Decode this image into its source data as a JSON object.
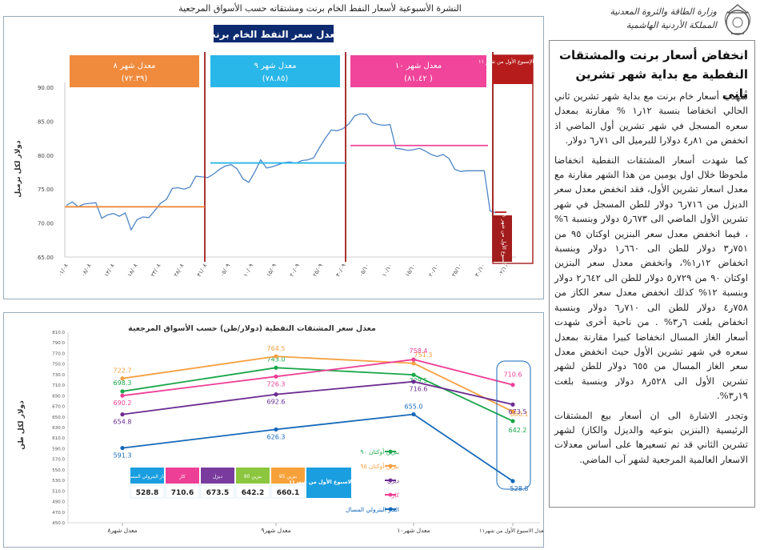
{
  "header": {
    "title": "النشرة الأسبوعية لأسعار النفط الخام برنت ومشتقاته حسب الأسواق المرجعية",
    "logo_lines": [
      "وزارة الطاقة والثروة المعدنية",
      "المملكة الأردنية الهاشمية"
    ]
  },
  "article": {
    "headline": "انخفاض أسعار برنت والمشتقات النفطية مع بداية شهر تشرين ثاني",
    "paragraphs": [
      "شهدت أسعار خام برنت مع بداية شهر تشرين ثاني الحالي انخفاضا بنسبة ١٢ر١ % مقارنة بمعدل سعره المسجل في شهر تشرين أول الماضي اذ انخفض من ٨١ر٤ دولارا للبرميل الى ٧١ر٦ دولار.",
      "كما شهدت أسعار المشتقات النفطية انخفاضا ملحوظا خلال اول يومين من هذا الشهر مقارنة مع معدل اسعار تشرين الأول، فقد انخفض معدل سعر الديزل من ٧١٦ر٦ دولار للطن المسجل في شهر تشرين الأول الماضي الى ٦٧٣ر٥ دولار وبنسبة ٦% ، فيما انخفض معدل سعر البنزين اوكتان ٩٥ من ٧٥١ر٣ دولار للطن الى ٦٦٠ر١ دولار وبنسبة انخفاض ١٢ر١%، وانخفض معدل سعر البنزين اوكتان ٩٠ من ٧٢٩ر٥ دولار للطن الى ٦٤٢ر٢ دولار وبنسبة ١٢% كذلك انخفض معدل سعر الكاز من ٧٥٨ر٤ دولار للطن الى ٧١٠ر٦ دولار وبنسبة انخفاض بلغت ٦ر٣% . من ناحية أخرى شهدت أسعار الغاز المسال انخفاضا كبيرا مقارنة بمعدل سعره في شهر تشرين الأول حيث انخفض معدل سعر الغاز المسال من ٦٥٥ دولار للطن لشهر تشرين الأول الى ٥٢٨ر٨ دولار وبنسبة بلغت ١٩ر٣%.",
      "وتجدر الاشارة الى ان أسعار بيع المشتقات الرئيسية (البنزين بنوعيه والديزل والكاز) لشهر تشرين الثاني قد تم تسعيرها على أساس معدلات الاسعار العالمية المرجعية لشهر آب الماضي."
    ]
  },
  "chart_data": [
    {
      "type": "line",
      "title": "معدل سعر النفط الخام برنت",
      "ylabel": "دولار لكل برميل",
      "ylim": [
        65,
        90
      ],
      "yticks": [
        65,
        70,
        75,
        80,
        85,
        90
      ],
      "ytick_labels": [
        "65.00",
        "70.00",
        "75.00",
        "80.00",
        "85.00",
        "90.00"
      ],
      "x_tick_labels": [
        "٠١/٠٨",
        "٠٨/٠٨",
        "١٣/٠٨",
        "١٨/٠٨",
        "٢٣/٠٨",
        "٢٨/٠٨",
        "٣١/٠٨",
        "٠٥/٠٩",
        "١٠/٠٩",
        "١٥/٠٩",
        "٢٠/٠٩",
        "٢٥/٠٩",
        "٣٠/٠٩",
        "٠٥/١٠",
        "١٠/١٠",
        "١٥/١٠",
        "٢٠/١٠",
        "٢٥/١٠",
        "٣٠/١٠",
        "٠٢/١١"
      ],
      "series": [
        {
          "values": [
            72.6,
            73.1,
            72.4,
            72.8,
            72.9,
            73.0,
            70.7,
            71.2,
            71.4,
            71.0,
            71.5,
            69.0,
            70.5,
            70.9,
            70.8,
            71.8,
            72.9,
            73.5,
            75.1,
            75.2,
            75.0,
            75.3,
            76.9,
            76.8,
            76.7,
            77.2,
            77.9,
            78.4,
            78.6,
            78.0,
            76.5,
            76.0,
            77.5,
            79.3,
            78.1,
            78.3,
            78.6,
            78.9,
            79.0,
            78.8,
            79.2,
            79.3,
            79.6,
            81.1,
            82.5,
            83.7,
            83.6,
            83.9,
            84.6,
            85.8,
            86.1,
            86.0,
            84.8,
            84.5,
            84.4,
            84.5,
            81.0,
            80.9,
            80.7,
            80.8,
            81.0,
            80.6,
            80.1,
            79.8,
            80.1,
            79.5,
            77.9,
            77.6,
            77.7,
            77.7,
            77.7,
            77.7,
            71.8,
            71.5
          ]
        }
      ],
      "period_averages": [
        {
          "label": "معدل شهر ٨",
          "value_label": "(٧٢.٣٩)",
          "value": 72.39,
          "color": "#f08a3c"
        },
        {
          "label": "معدل شهر ٩",
          "value_label": "(٧٨.٨٥)",
          "value": 78.85,
          "color": "#29b6e8"
        },
        {
          "label": "معدل شهر ١٠",
          "value_label": "( ٨١.٤٢)",
          "value": 81.42,
          "color": "#f0459a"
        },
        {
          "label": "معدل الإسبوع الأول من شهر ١١",
          "value_label": "",
          "value": 71.6,
          "color": "#b71c1c"
        }
      ],
      "week_annotation": "معدل الاسبوع الأول من شهر ١١ (٧١.٦)"
    },
    {
      "type": "line",
      "title": "معدل سعر المشتقات النفطية (دولار/طن) حسب الأسواق المرجعية",
      "ylabel": "دولار لكل طن",
      "ylim": [
        450,
        810
      ],
      "ytick_labels": [
        "450.0",
        "470.0",
        "490.0",
        "510.0",
        "530.0",
        "550.0",
        "570.0",
        "590.0",
        "610.0",
        "630.0",
        "650.0",
        "670.0",
        "690.0",
        "710.0",
        "730.0",
        "750.0",
        "770.0",
        "790.0",
        "810.0"
      ],
      "categories": [
        "معدل شهر٨",
        "معدل شهر٩",
        "معدل شهر١٠",
        "معدل الاسبوع الأول من شهر١١"
      ],
      "series": [
        {
          "name": "بنزين أوكتان ٩٠",
          "color": "#1aa64a",
          "values": [
            698.3,
            743.0,
            729.5,
            642.2
          ],
          "labels": [
            "698.3",
            "743.0",
            "729.5",
            "642.2"
          ]
        },
        {
          "name": "بنزين أوكتان ٩٥",
          "color": "#f5a142",
          "values": [
            722.7,
            764.5,
            751.3,
            660.1
          ],
          "labels": [
            "722.7",
            "764.5",
            "751.3",
            "660.1"
          ]
        },
        {
          "name": "ديزل",
          "color": "#6b2c91",
          "values": [
            654.8,
            692.6,
            716.6,
            673.5
          ],
          "labels": [
            "654.8",
            "692.6",
            "716.6",
            "673.5"
          ]
        },
        {
          "name": "كاز",
          "color": "#ee3f96",
          "values": [
            690.2,
            726.3,
            758.4,
            710.6
          ],
          "labels": [
            "690.2",
            "726.3",
            "758.4",
            "710.6"
          ]
        },
        {
          "name": "الغاز البترولي المسال",
          "color": "#1668b8",
          "values": [
            591.3,
            626.3,
            655.0,
            528.8
          ],
          "labels": [
            "591.3",
            "626.3",
            "655.0",
            "528.8"
          ]
        }
      ],
      "table": {
        "row_label": "معدل الاسبوع الأول من شهر١١",
        "columns": [
          {
            "header": "الغاز البترولي المسال",
            "value": "528.8",
            "color": "#1a9ee0"
          },
          {
            "header": "كاز",
            "value": "710.6",
            "color": "#ee3f96"
          },
          {
            "header": "ديزل",
            "value": "673.5",
            "color": "#7a3b9e"
          },
          {
            "header": "بنزين 90",
            "value": "642.2",
            "color": "#8cc63f"
          },
          {
            "header": "بنزين 95",
            "value": "660.1",
            "color": "#f7a13a"
          }
        ]
      }
    }
  ]
}
